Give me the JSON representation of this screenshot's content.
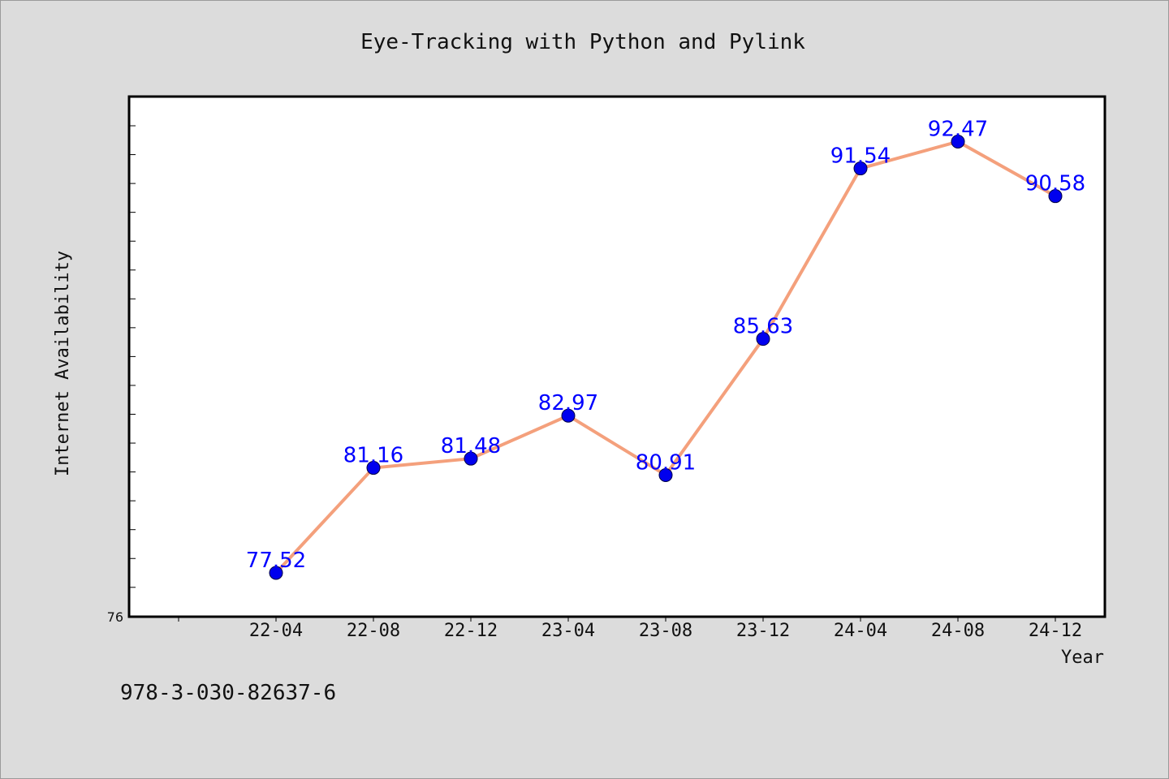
{
  "chart_data": {
    "type": "line",
    "title": "Eye-Tracking with Python and Pylink",
    "xlabel": "Year",
    "ylabel": "Internet Availability",
    "categories": [
      "22-04",
      "22-08",
      "22-12",
      "23-04",
      "23-08",
      "23-12",
      "24-04",
      "24-08",
      "24-12"
    ],
    "series": [
      {
        "values": [
          77.52,
          81.16,
          81.48,
          82.97,
          80.91,
          85.63,
          91.54,
          92.47,
          90.58
        ],
        "color": "#f4a07c",
        "marker_color": "#0000ee",
        "label_color": "#0000ff"
      }
    ],
    "data_labels": [
      "77.52",
      "81.16",
      "81.48",
      "82.97",
      "80.91",
      "85.63",
      "91.54",
      "92.47",
      "90.58"
    ],
    "yticks_labeled": [
      "76"
    ],
    "ylim": [
      76,
      94
    ],
    "grid": false,
    "legend": "none"
  },
  "footer_text": "978-3-030-82637-6"
}
